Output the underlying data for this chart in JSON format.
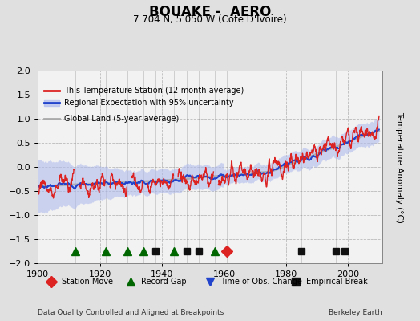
{
  "title": "BOUAKE -  AERO",
  "subtitle": "7.704 N, 5.050 W (Cote D'Ivoire)",
  "footer_left": "Data Quality Controlled and Aligned at Breakpoints",
  "footer_right": "Berkeley Earth",
  "ylabel": "Temperature Anomaly (°C)",
  "xlim": [
    1900,
    2011
  ],
  "ylim": [
    -2,
    2
  ],
  "yticks": [
    -2,
    -1.5,
    -1,
    -0.5,
    0,
    0.5,
    1,
    1.5,
    2
  ],
  "xticks": [
    1900,
    1920,
    1940,
    1960,
    1980,
    2000
  ],
  "bg_color": "#e0e0e0",
  "plot_bg_color": "#f2f2f2",
  "red_color": "#dd2222",
  "blue_color": "#2244cc",
  "band_color": "#b0bbee",
  "grey_color": "#aaaaaa",
  "grid_color": "#bbbbbb",
  "station_move_years": [
    1961
  ],
  "record_gap_years": [
    1912,
    1922,
    1929,
    1934,
    1944,
    1957
  ],
  "obs_change_years": [],
  "empirical_break_years": [
    1938,
    1948,
    1952,
    1985,
    1996,
    1999
  ],
  "marker_y": -1.75,
  "seed": 7
}
